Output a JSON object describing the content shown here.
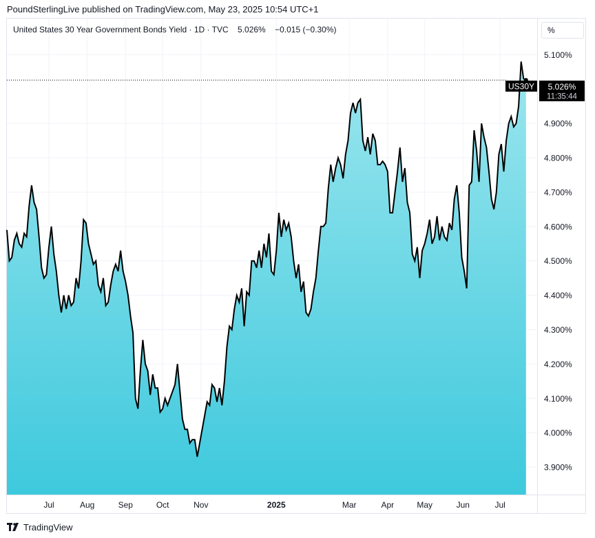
{
  "header": {
    "publisher_text": "PoundSterlingLive published on TradingView.com, May 23, 2025 10:54 UTC+1"
  },
  "legend": {
    "symbol_name": "United States 30 Year Government Bonds Yield",
    "interval": "1D",
    "source": "TVC",
    "last_value": "5.026%",
    "change": "−0.015 (−0.30%)"
  },
  "unit_label": "%",
  "price_label": {
    "symbol": "US30Y",
    "value": "5.026%",
    "countdown": "11:35:44"
  },
  "footer": {
    "brand": "TradingView"
  },
  "colors": {
    "line": "#000000",
    "fill_top": "#9be6ee",
    "fill_bottom": "#3ec9dd",
    "grid": "#f0f3fa",
    "label_bg": "#000000"
  },
  "chart_data": {
    "type": "area",
    "title": "",
    "xlabel": "",
    "ylabel": "",
    "ylim": [
      3.82,
      5.205
    ],
    "y_ticks": [
      3.9,
      4.0,
      4.1,
      4.2,
      4.3,
      4.4,
      4.5,
      4.6,
      4.7,
      4.8,
      4.9,
      5.1
    ],
    "y_tick_labels": [
      "3.900%",
      "4.000%",
      "4.100%",
      "4.200%",
      "4.300%",
      "4.400%",
      "4.500%",
      "4.600%",
      "4.700%",
      "4.800%",
      "4.900%",
      "5.100%"
    ],
    "x_range": [
      "2024-05-28",
      "2025-07-31"
    ],
    "x_ticks": [
      {
        "label": "Jul",
        "date": "2024-07-01",
        "bold": false
      },
      {
        "label": "Aug",
        "date": "2024-08-01",
        "bold": false
      },
      {
        "label": "Sep",
        "date": "2024-09-01",
        "bold": false
      },
      {
        "label": "Oct",
        "date": "2024-10-01",
        "bold": false
      },
      {
        "label": "Nov",
        "date": "2024-11-01",
        "bold": false
      },
      {
        "label": "2025",
        "date": "2025-01-01",
        "bold": true
      },
      {
        "label": "Mar",
        "date": "2025-03-01",
        "bold": false
      },
      {
        "label": "Apr",
        "date": "2025-04-01",
        "bold": false
      },
      {
        "label": "May",
        "date": "2025-05-01",
        "bold": false
      },
      {
        "label": "Jun",
        "date": "2025-06-01",
        "bold": false
      },
      {
        "label": "Jul",
        "date": "2025-07-01",
        "bold": false
      }
    ],
    "series": [
      {
        "values": [
          [
            "2024-05-28",
            4.59
          ],
          [
            "2024-05-30",
            4.5
          ],
          [
            "2024-06-01",
            4.51
          ],
          [
            "2024-06-03",
            4.56
          ],
          [
            "2024-06-05",
            4.58
          ],
          [
            "2024-06-07",
            4.55
          ],
          [
            "2024-06-09",
            4.54
          ],
          [
            "2024-06-11",
            4.58
          ],
          [
            "2024-06-13",
            4.57
          ],
          [
            "2024-06-15",
            4.66
          ],
          [
            "2024-06-17",
            4.72
          ],
          [
            "2024-06-19",
            4.67
          ],
          [
            "2024-06-21",
            4.65
          ],
          [
            "2024-06-23",
            4.57
          ],
          [
            "2024-06-25",
            4.48
          ],
          [
            "2024-06-27",
            4.45
          ],
          [
            "2024-06-29",
            4.46
          ],
          [
            "2024-07-01",
            4.54
          ],
          [
            "2024-07-03",
            4.6
          ],
          [
            "2024-07-05",
            4.52
          ],
          [
            "2024-07-07",
            4.47
          ],
          [
            "2024-07-09",
            4.4
          ],
          [
            "2024-07-11",
            4.35
          ],
          [
            "2024-07-13",
            4.4
          ],
          [
            "2024-07-15",
            4.36
          ],
          [
            "2024-07-17",
            4.4
          ],
          [
            "2024-07-19",
            4.37
          ],
          [
            "2024-07-21",
            4.38
          ],
          [
            "2024-07-23",
            4.45
          ],
          [
            "2024-07-25",
            4.42
          ],
          [
            "2024-07-27",
            4.5
          ],
          [
            "2024-07-29",
            4.62
          ],
          [
            "2024-07-31",
            4.61
          ],
          [
            "2024-08-02",
            4.55
          ],
          [
            "2024-08-04",
            4.52
          ],
          [
            "2024-08-06",
            4.49
          ],
          [
            "2024-08-08",
            4.5
          ],
          [
            "2024-08-10",
            4.43
          ],
          [
            "2024-08-12",
            4.41
          ],
          [
            "2024-08-14",
            4.45
          ],
          [
            "2024-08-16",
            4.37
          ],
          [
            "2024-08-18",
            4.38
          ],
          [
            "2024-08-20",
            4.43
          ],
          [
            "2024-08-22",
            4.47
          ],
          [
            "2024-08-24",
            4.49
          ],
          [
            "2024-08-26",
            4.47
          ],
          [
            "2024-08-28",
            4.53
          ],
          [
            "2024-08-30",
            4.47
          ],
          [
            "2024-09-01",
            4.44
          ],
          [
            "2024-09-03",
            4.4
          ],
          [
            "2024-09-05",
            4.34
          ],
          [
            "2024-09-07",
            4.29
          ],
          [
            "2024-09-09",
            4.1
          ],
          [
            "2024-09-11",
            4.07
          ],
          [
            "2024-09-13",
            4.18
          ],
          [
            "2024-09-15",
            4.27
          ],
          [
            "2024-09-17",
            4.2
          ],
          [
            "2024-09-19",
            4.18
          ],
          [
            "2024-09-21",
            4.11
          ],
          [
            "2024-09-23",
            4.17
          ],
          [
            "2024-09-25",
            4.13
          ],
          [
            "2024-09-27",
            4.13
          ],
          [
            "2024-09-29",
            4.06
          ],
          [
            "2024-10-01",
            4.07
          ],
          [
            "2024-10-03",
            4.1
          ],
          [
            "2024-10-05",
            4.08
          ],
          [
            "2024-10-07",
            4.1
          ],
          [
            "2024-10-09",
            4.12
          ],
          [
            "2024-10-11",
            4.14
          ],
          [
            "2024-10-13",
            4.2
          ],
          [
            "2024-10-15",
            4.12
          ],
          [
            "2024-10-17",
            4.04
          ],
          [
            "2024-10-19",
            4.01
          ],
          [
            "2024-10-21",
            4.01
          ],
          [
            "2024-10-23",
            3.97
          ],
          [
            "2024-10-25",
            3.98
          ],
          [
            "2024-10-27",
            3.98
          ],
          [
            "2024-10-29",
            3.93
          ],
          [
            "2024-10-31",
            3.97
          ],
          [
            "2024-11-02",
            4.01
          ],
          [
            "2024-11-04",
            4.05
          ],
          [
            "2024-11-06",
            4.09
          ],
          [
            "2024-11-08",
            4.08
          ],
          [
            "2024-11-10",
            4.14
          ],
          [
            "2024-11-12",
            4.13
          ],
          [
            "2024-11-14",
            4.09
          ],
          [
            "2024-11-16",
            4.13
          ],
          [
            "2024-11-18",
            4.08
          ],
          [
            "2024-11-20",
            4.15
          ],
          [
            "2024-11-22",
            4.25
          ],
          [
            "2024-11-24",
            4.31
          ],
          [
            "2024-11-26",
            4.3
          ],
          [
            "2024-11-28",
            4.36
          ],
          [
            "2024-11-30",
            4.4
          ],
          [
            "2024-12-02",
            4.38
          ],
          [
            "2024-12-04",
            4.42
          ],
          [
            "2024-12-06",
            4.31
          ],
          [
            "2024-12-08",
            4.41
          ],
          [
            "2024-12-10",
            4.4
          ],
          [
            "2024-12-12",
            4.5
          ],
          [
            "2024-12-14",
            4.5
          ],
          [
            "2024-12-16",
            4.48
          ],
          [
            "2024-12-18",
            4.53
          ],
          [
            "2024-12-20",
            4.48
          ],
          [
            "2024-12-22",
            4.55
          ],
          [
            "2024-12-24",
            4.51
          ],
          [
            "2024-12-26",
            4.58
          ],
          [
            "2024-12-28",
            4.47
          ],
          [
            "2024-12-30",
            4.46
          ],
          [
            "2025-01-01",
            4.53
          ],
          [
            "2025-01-03",
            4.64
          ],
          [
            "2025-01-05",
            4.57
          ],
          [
            "2025-01-07",
            4.62
          ],
          [
            "2025-01-09",
            4.59
          ],
          [
            "2025-01-11",
            4.61
          ],
          [
            "2025-01-13",
            4.57
          ],
          [
            "2025-01-15",
            4.5
          ],
          [
            "2025-01-17",
            4.45
          ],
          [
            "2025-01-19",
            4.49
          ],
          [
            "2025-01-21",
            4.41
          ],
          [
            "2025-01-23",
            4.44
          ],
          [
            "2025-01-25",
            4.35
          ],
          [
            "2025-01-27",
            4.34
          ],
          [
            "2025-01-29",
            4.36
          ],
          [
            "2025-01-31",
            4.41
          ],
          [
            "2025-02-02",
            4.45
          ],
          [
            "2025-02-04",
            4.53
          ],
          [
            "2025-02-06",
            4.6
          ],
          [
            "2025-02-08",
            4.6
          ],
          [
            "2025-02-10",
            4.61
          ],
          [
            "2025-02-12",
            4.71
          ],
          [
            "2025-02-14",
            4.78
          ],
          [
            "2025-02-16",
            4.73
          ],
          [
            "2025-02-18",
            4.77
          ],
          [
            "2025-02-20",
            4.8
          ],
          [
            "2025-02-22",
            4.78
          ],
          [
            "2025-02-24",
            4.74
          ],
          [
            "2025-02-26",
            4.81
          ],
          [
            "2025-02-28",
            4.85
          ],
          [
            "2025-03-02",
            4.93
          ],
          [
            "2025-03-04",
            4.96
          ],
          [
            "2025-03-06",
            4.93
          ],
          [
            "2025-03-08",
            4.96
          ],
          [
            "2025-03-10",
            4.97
          ],
          [
            "2025-03-12",
            4.85
          ],
          [
            "2025-03-14",
            4.82
          ],
          [
            "2025-03-16",
            4.86
          ],
          [
            "2025-03-18",
            4.81
          ],
          [
            "2025-03-20",
            4.87
          ],
          [
            "2025-03-22",
            4.85
          ],
          [
            "2025-03-24",
            4.78
          ],
          [
            "2025-03-26",
            4.78
          ],
          [
            "2025-03-28",
            4.79
          ],
          [
            "2025-03-30",
            4.78
          ],
          [
            "2025-04-01",
            4.76
          ],
          [
            "2025-04-03",
            4.64
          ],
          [
            "2025-04-05",
            4.64
          ],
          [
            "2025-04-07",
            4.7
          ],
          [
            "2025-04-09",
            4.76
          ],
          [
            "2025-04-11",
            4.83
          ],
          [
            "2025-04-13",
            4.73
          ],
          [
            "2025-04-15",
            4.77
          ],
          [
            "2025-04-17",
            4.67
          ],
          [
            "2025-04-19",
            4.64
          ],
          [
            "2025-04-21",
            4.52
          ],
          [
            "2025-04-23",
            4.5
          ],
          [
            "2025-04-25",
            4.54
          ],
          [
            "2025-04-27",
            4.45
          ],
          [
            "2025-04-29",
            4.53
          ],
          [
            "2025-05-01",
            4.55
          ],
          [
            "2025-05-03",
            4.58
          ],
          [
            "2025-05-05",
            4.62
          ],
          [
            "2025-05-07",
            4.55
          ],
          [
            "2025-05-09",
            4.57
          ],
          [
            "2025-05-11",
            4.63
          ],
          [
            "2025-05-13",
            4.56
          ],
          [
            "2025-05-15",
            4.6
          ],
          [
            "2025-05-17",
            4.57
          ],
          [
            "2025-05-19",
            4.56
          ],
          [
            "2025-05-21",
            4.61
          ],
          [
            "2025-05-23",
            4.59
          ],
          [
            "2025-05-25",
            4.68
          ],
          [
            "2025-05-27",
            4.72
          ],
          [
            "2025-05-29",
            4.64
          ],
          [
            "2025-05-31",
            4.51
          ],
          [
            "2025-06-02",
            4.47
          ],
          [
            "2025-06-04",
            4.42
          ],
          [
            "2025-06-06",
            4.72
          ],
          [
            "2025-06-08",
            4.73
          ],
          [
            "2025-06-10",
            4.88
          ],
          [
            "2025-06-12",
            4.82
          ],
          [
            "2025-06-14",
            4.73
          ],
          [
            "2025-06-16",
            4.9
          ],
          [
            "2025-06-18",
            4.86
          ],
          [
            "2025-06-20",
            4.83
          ],
          [
            "2025-06-22",
            4.76
          ],
          [
            "2025-06-24",
            4.68
          ],
          [
            "2025-06-26",
            4.65
          ],
          [
            "2025-06-28",
            4.7
          ],
          [
            "2025-06-30",
            4.81
          ],
          [
            "2025-07-02",
            4.84
          ],
          [
            "2025-07-04",
            4.76
          ],
          [
            "2025-07-06",
            4.85
          ],
          [
            "2025-07-08",
            4.9
          ],
          [
            "2025-07-10",
            4.92
          ],
          [
            "2025-07-12",
            4.89
          ],
          [
            "2025-07-14",
            4.9
          ],
          [
            "2025-07-16",
            4.95
          ],
          [
            "2025-07-18",
            5.08
          ],
          [
            "2025-07-20",
            5.03
          ],
          [
            "2025-07-22",
            5.026
          ]
        ]
      }
    ],
    "current_value": 5.026,
    "grid": true,
    "legend": "top-left"
  }
}
